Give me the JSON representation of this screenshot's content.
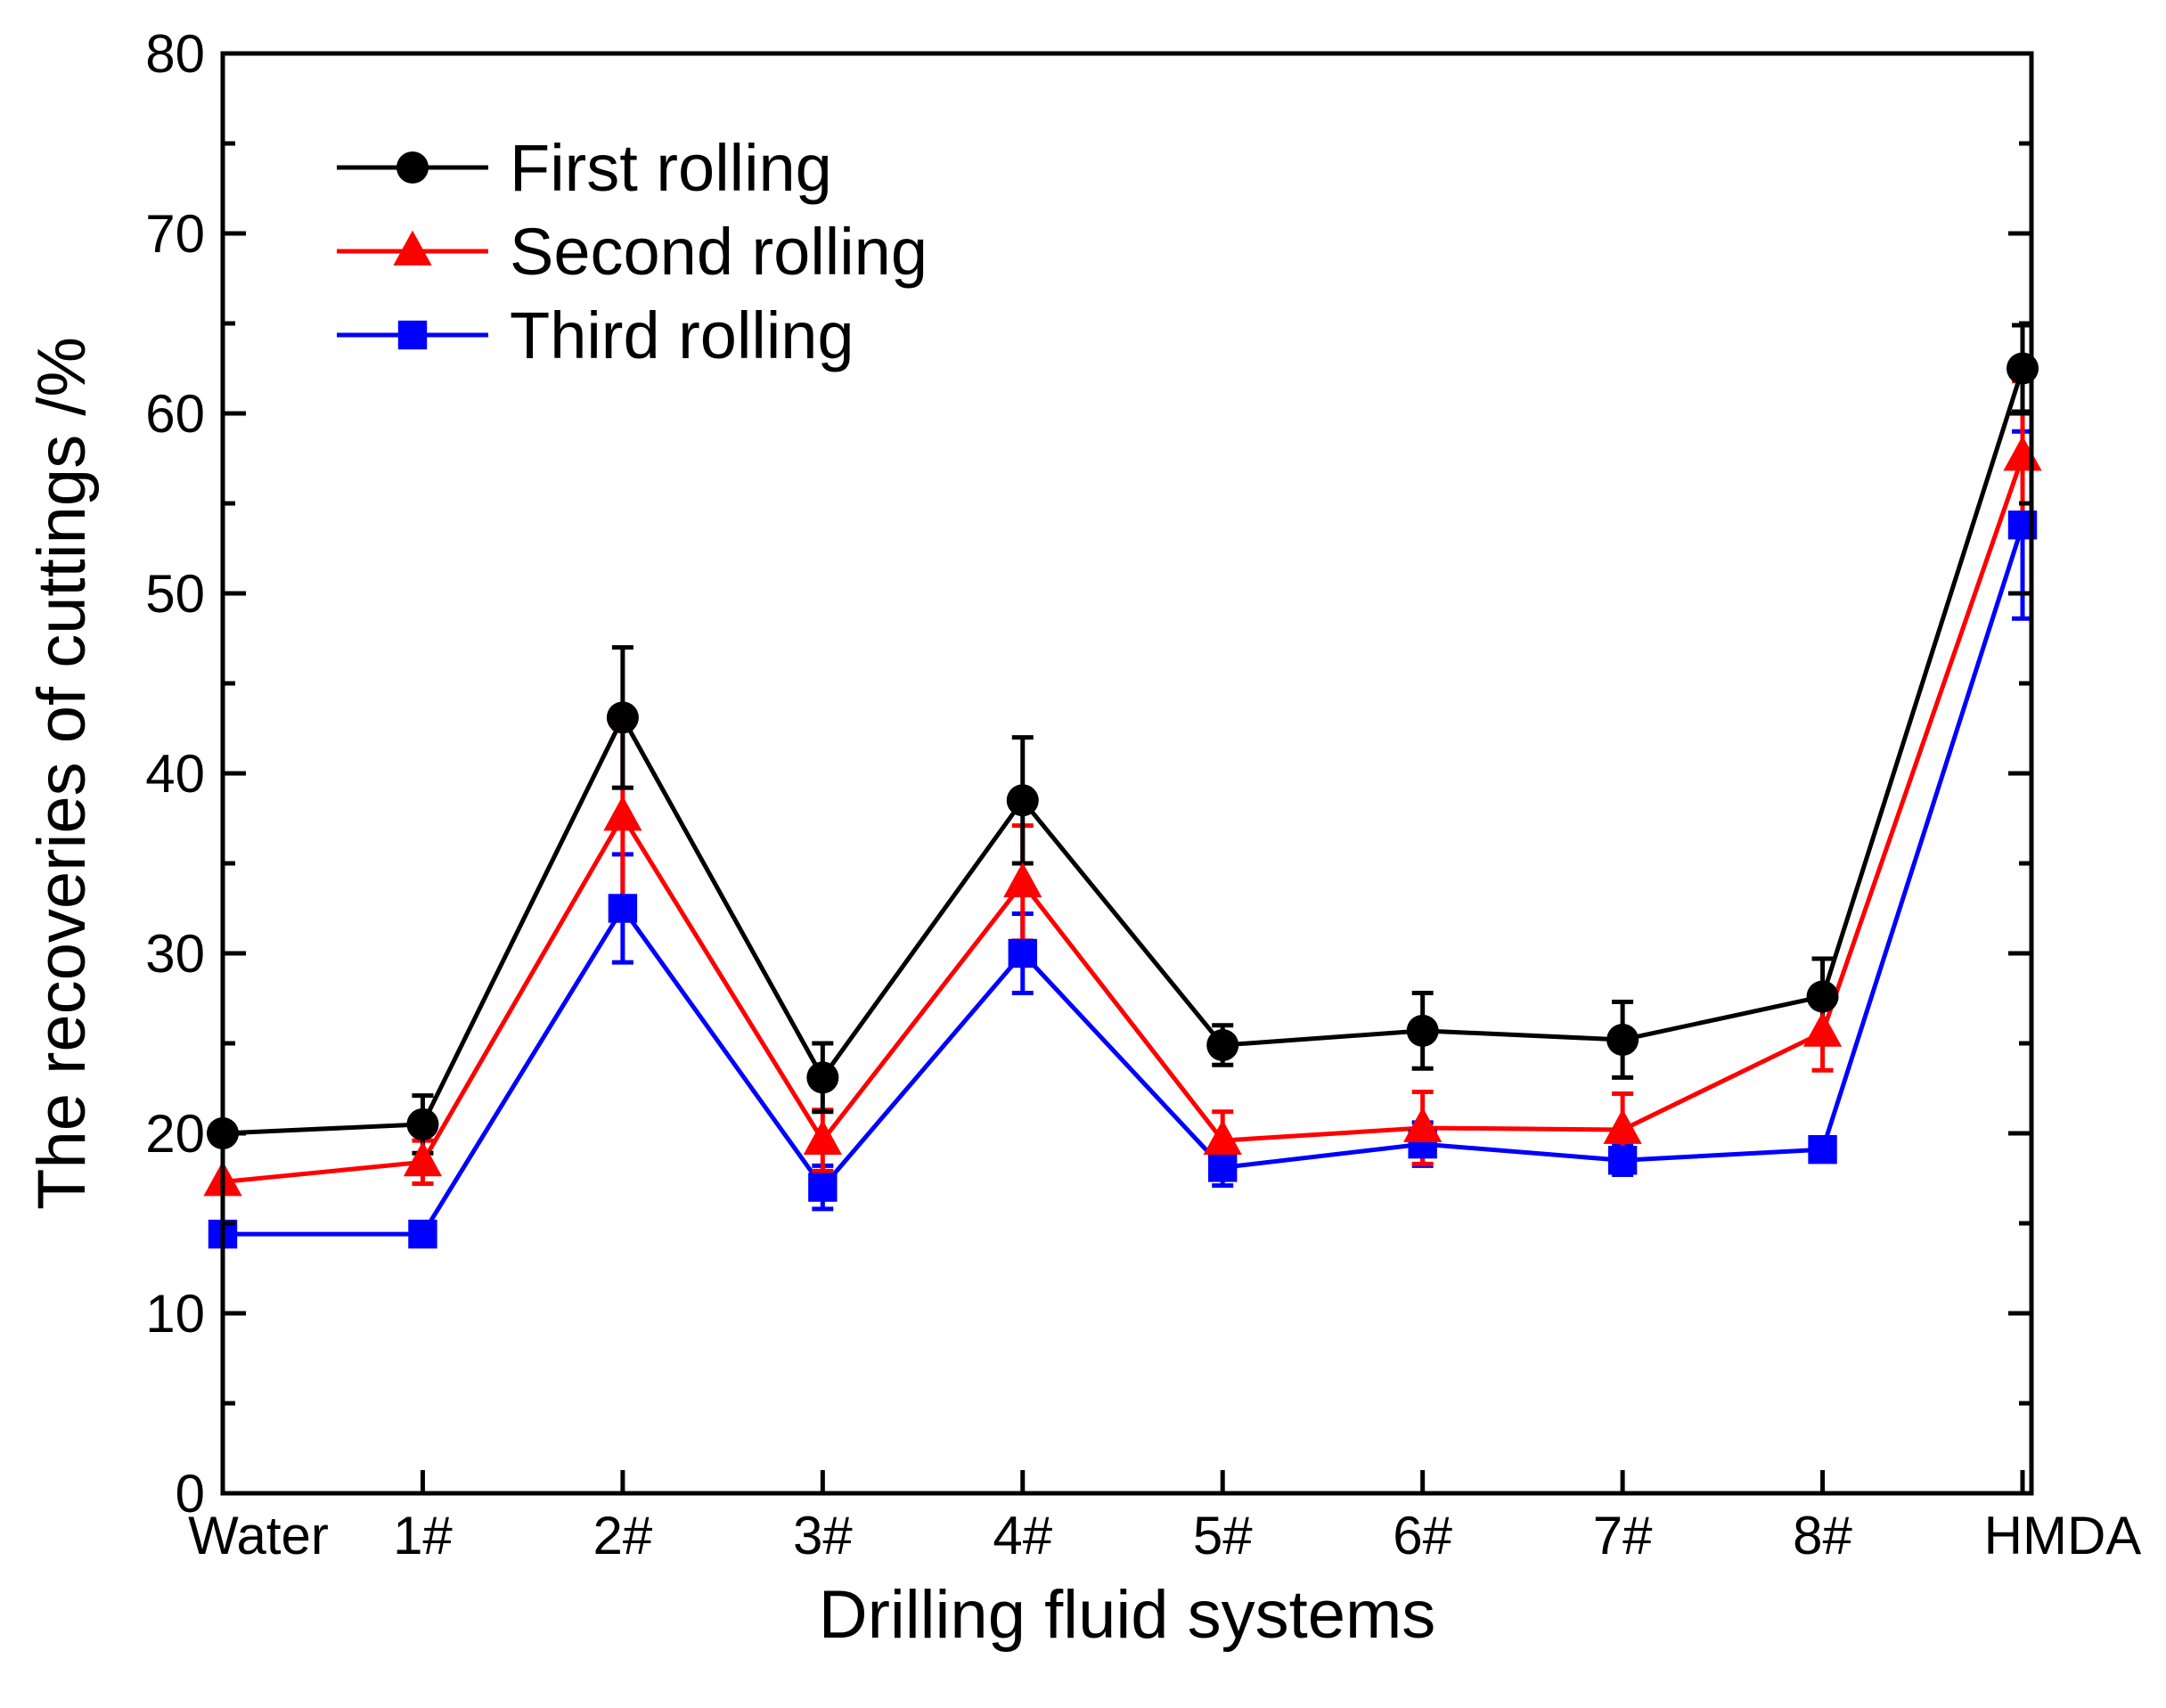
{
  "chart_data": {
    "type": "line",
    "title": "",
    "xlabel": "Drilling fluid systems",
    "ylabel": "The recoveries of cuttings /%",
    "ylim": [
      0,
      80
    ],
    "yticks": [
      0,
      10,
      20,
      30,
      40,
      50,
      60,
      70,
      80
    ],
    "ytick_labels": [
      "0",
      "10",
      "20",
      "30",
      "40",
      "50",
      "60",
      "70",
      "80"
    ],
    "categories": [
      "Water",
      "1#",
      "2#",
      "3#",
      "4#",
      "5#",
      "6#",
      "7#",
      "8#",
      "HMDA"
    ],
    "grid": false,
    "legend_position": "top-left",
    "series": [
      {
        "name": "First rolling",
        "color": "#000000",
        "marker": "circle",
        "values": [
          20.0,
          20.5,
          43.1,
          23.1,
          38.5,
          24.9,
          25.7,
          25.2,
          27.6,
          62.5
        ],
        "errors": [
          0.0,
          1.6,
          3.9,
          1.9,
          3.5,
          1.1,
          2.1,
          2.1,
          2.1,
          2.4
        ]
      },
      {
        "name": "Second rolling",
        "color": "#ff0000",
        "marker": "triangle",
        "values": [
          17.3,
          18.4,
          37.6,
          19.6,
          33.9,
          19.6,
          20.3,
          20.2,
          25.6,
          57.6
        ],
        "errors": [
          0.0,
          1.2,
          4.9,
          1.7,
          3.2,
          1.6,
          2.0,
          2.0,
          2.1,
          4.2
        ]
      },
      {
        "name": "Third rolling",
        "color": "#0000ff",
        "marker": "square",
        "values": [
          14.4,
          14.4,
          32.5,
          17.0,
          30.0,
          18.1,
          19.4,
          18.5,
          19.1,
          53.8
        ],
        "errors": [
          0.0,
          0.0,
          3.0,
          1.2,
          2.2,
          1.0,
          1.2,
          0.8,
          0.5,
          5.2
        ]
      }
    ]
  }
}
